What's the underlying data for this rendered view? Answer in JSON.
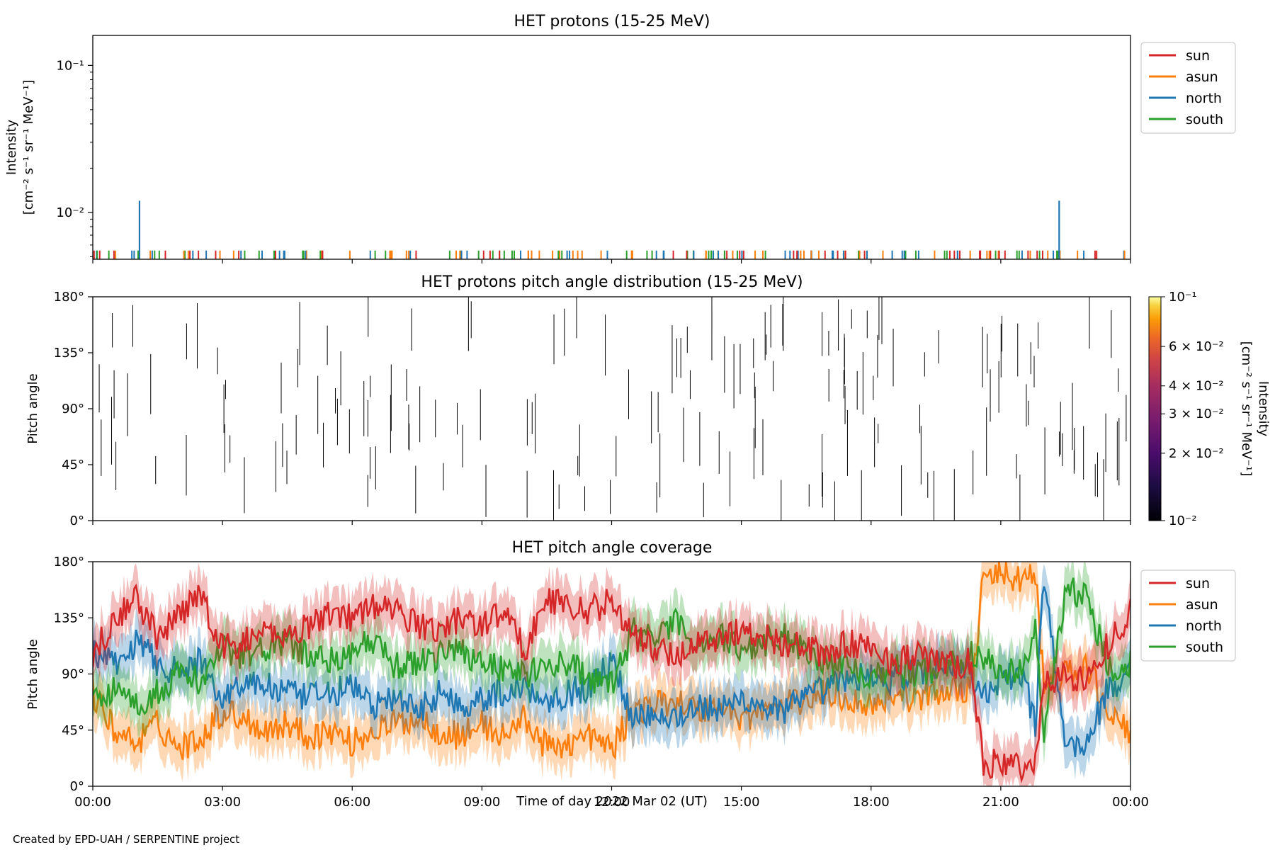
{
  "footer": "Created by EPD-UAH / SERPENTINE project",
  "colors": {
    "sun": "#d62728",
    "asun": "#ff7f0e",
    "north": "#1f77b4",
    "south": "#2ca02c",
    "axis": "#000000"
  },
  "x_axis": {
    "label": "Time of day 2022 Mar 02 (UT)",
    "ticks": [
      "00:00",
      "03:00",
      "06:00",
      "09:00",
      "12:00",
      "15:00",
      "18:00",
      "21:00",
      "00:00"
    ],
    "range_hours": [
      0,
      24
    ]
  },
  "chart_data": [
    {
      "type": "line",
      "title": "HET protons (15-25 MeV)",
      "ylabel": [
        "Intensity",
        "[cm⁻² s⁻¹ sr⁻¹ MeV⁻¹]"
      ],
      "yscale": "log",
      "ylim": [
        0.0048,
        0.16
      ],
      "ytick_labels": [
        "10⁻²",
        "10⁻¹"
      ],
      "ytick_values": [
        0.01,
        0.1
      ],
      "legend": "top-right outside",
      "legend_entries": [
        "sun",
        "asun",
        "north",
        "south"
      ],
      "baseline": 0.0055,
      "spikes": [
        {
          "series": "north",
          "x_hours": 1.08,
          "y": 0.012
        },
        {
          "series": "north",
          "x_hours": 22.35,
          "y": 0.012
        }
      ]
    },
    {
      "type": "heatmap",
      "title": "HET protons pitch angle distribution (15-25 MeV)",
      "ylabel": "Pitch angle",
      "ylim": [
        0,
        180
      ],
      "ytick_labels": [
        "0°",
        "45°",
        "90°",
        "135°",
        "180°"
      ],
      "ytick_values": [
        0,
        45,
        90,
        135,
        180
      ],
      "colorbar": {
        "label": "Intensity\n[cm⁻² s⁻¹ sr⁻¹ MeV⁻¹]",
        "scale": "log",
        "range": [
          0.01,
          0.1
        ],
        "tick_labels": [
          "10⁻²",
          "2 × 10⁻²",
          "3 × 10⁻²",
          "4 × 10⁻²",
          "6 × 10⁻²",
          "10⁻¹"
        ],
        "tick_values": [
          0.01,
          0.02,
          0.03,
          0.04,
          0.06,
          0.1
        ]
      }
    },
    {
      "type": "line",
      "title": "HET pitch angle coverage",
      "ylabel": "Pitch angle",
      "ylim": [
        0,
        180
      ],
      "ytick_labels": [
        "0°",
        "45°",
        "90°",
        "135°",
        "180°"
      ],
      "ytick_values": [
        0,
        45,
        90,
        135,
        180
      ],
      "legend": "top-right outside",
      "legend_entries": [
        "sun",
        "asun",
        "north",
        "south"
      ],
      "shaded_band": true,
      "series": [
        {
          "name": "sun",
          "x_hours": [
            0,
            0.5,
            1,
            1.5,
            2,
            2.5,
            3,
            3.5,
            4,
            4.5,
            5,
            5.5,
            6,
            6.5,
            7,
            7.5,
            8,
            8.5,
            9,
            9.5,
            10,
            10.5,
            11,
            11.5,
            12,
            12.5,
            13,
            13.5,
            14,
            14.5,
            15,
            15.5,
            16,
            16.5,
            17,
            17.5,
            18,
            18.5,
            19,
            19.5,
            20,
            20.3,
            20.6,
            21,
            21.5,
            21.8,
            22,
            22.5,
            23,
            23.5,
            24
          ],
          "values": [
            105,
            135,
            150,
            120,
            135,
            155,
            110,
            115,
            125,
            120,
            130,
            140,
            135,
            145,
            140,
            130,
            125,
            135,
            130,
            140,
            110,
            150,
            145,
            140,
            150,
            120,
            110,
            105,
            115,
            120,
            125,
            120,
            115,
            110,
            105,
            115,
            110,
            100,
            105,
            100,
            95,
            100,
            15,
            20,
            15,
            20,
            80,
            90,
            85,
            115,
            140
          ]
        },
        {
          "name": "asun",
          "x_hours": [
            0,
            0.5,
            1,
            1.5,
            2,
            2.5,
            3,
            3.5,
            4,
            4.5,
            5,
            5.5,
            6,
            6.5,
            7,
            7.5,
            8,
            8.5,
            9,
            9.5,
            10,
            10.5,
            11,
            11.5,
            12,
            12.5,
            13,
            13.5,
            14,
            14.5,
            15,
            15.5,
            16,
            16.5,
            17,
            17.5,
            18,
            18.5,
            19,
            19.5,
            20,
            20.3,
            20.6,
            21,
            21.5,
            21.8,
            22,
            22.5,
            23,
            23.5,
            24
          ],
          "values": [
            75,
            45,
            35,
            50,
            30,
            40,
            60,
            55,
            45,
            50,
            40,
            45,
            35,
            45,
            50,
            55,
            45,
            40,
            50,
            40,
            55,
            30,
            35,
            40,
            30,
            60,
            65,
            70,
            60,
            65,
            55,
            60,
            65,
            70,
            75,
            70,
            65,
            75,
            70,
            75,
            80,
            75,
            165,
            170,
            165,
            170,
            80,
            90,
            95,
            60,
            40
          ]
        },
        {
          "name": "north",
          "x_hours": [
            0,
            0.5,
            1,
            1.5,
            2,
            2.5,
            3,
            3.5,
            4,
            4.5,
            5,
            5.5,
            6,
            6.5,
            7,
            7.5,
            8,
            8.5,
            9,
            9.5,
            10,
            10.5,
            11,
            11.5,
            12,
            12.5,
            13,
            13.5,
            14,
            14.5,
            15,
            15.5,
            16,
            16.5,
            17,
            17.5,
            18,
            18.5,
            19,
            19.5,
            20,
            20.3,
            20.6,
            21,
            21.5,
            21.8,
            22,
            22.5,
            23,
            23.5,
            24
          ],
          "values": [
            110,
            95,
            115,
            100,
            90,
            100,
            70,
            85,
            80,
            75,
            70,
            75,
            80,
            65,
            70,
            60,
            75,
            65,
            70,
            75,
            80,
            70,
            75,
            80,
            100,
            55,
            60,
            55,
            65,
            60,
            70,
            65,
            60,
            70,
            80,
            85,
            90,
            85,
            90,
            95,
            100,
            90,
            70,
            85,
            90,
            50,
            170,
            30,
            35,
            80,
            90
          ]
        },
        {
          "name": "south",
          "x_hours": [
            0,
            0.5,
            1,
            1.5,
            2,
            2.5,
            3,
            3.5,
            4,
            4.5,
            5,
            5.5,
            6,
            6.5,
            7,
            7.5,
            8,
            8.5,
            9,
            9.5,
            10,
            10.5,
            11,
            11.5,
            12,
            12.5,
            13,
            13.5,
            14,
            14.5,
            15,
            15.5,
            16,
            16.5,
            17,
            17.5,
            18,
            18.5,
            19,
            19.5,
            20,
            20.3,
            20.6,
            21,
            21.5,
            21.8,
            22,
            22.5,
            23,
            23.5,
            24
          ],
          "values": [
            70,
            80,
            65,
            75,
            90,
            85,
            110,
            105,
            110,
            115,
            105,
            100,
            110,
            115,
            95,
            100,
            105,
            110,
            100,
            95,
            90,
            95,
            100,
            85,
            80,
            125,
            120,
            130,
            115,
            120,
            110,
            115,
            120,
            110,
            100,
            95,
            90,
            95,
            90,
            95,
            100,
            105,
            100,
            95,
            90,
            130,
            40,
            160,
            150,
            95,
            100
          ]
        }
      ]
    }
  ]
}
